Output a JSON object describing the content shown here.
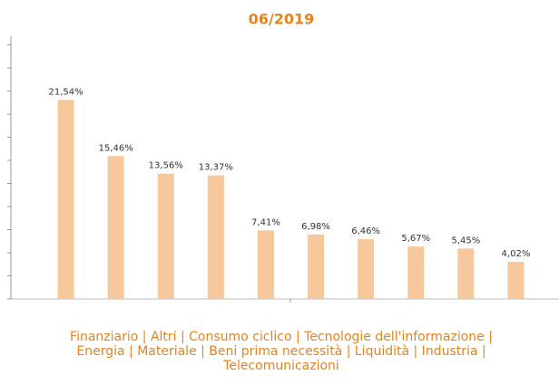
{
  "chart_data": {
    "type": "bar",
    "title": "06/2019",
    "values": [
      21.54,
      15.46,
      13.56,
      13.37,
      7.41,
      6.98,
      6.46,
      5.67,
      5.45,
      4.02
    ],
    "value_labels": [
      "21,54%",
      "15,46%",
      "13,56%",
      "13,37%",
      "7,41%",
      "6,98%",
      "6,46%",
      "5,67%",
      "5,45%",
      "4,02%"
    ],
    "color": "#f7c89b",
    "ylim": [
      0,
      28
    ],
    "yticks": [
      0,
      2.5,
      5,
      7.5,
      10,
      12.5,
      15,
      17.5,
      20,
      22.5,
      25,
      27.5
    ],
    "caption": "Finanziario | Altri | Consumo ciclico | Tecnologie dell'informazione | Energia | Materiale | Beni prima necessità | Liquidità | Industria | Telecomunicazioni"
  }
}
